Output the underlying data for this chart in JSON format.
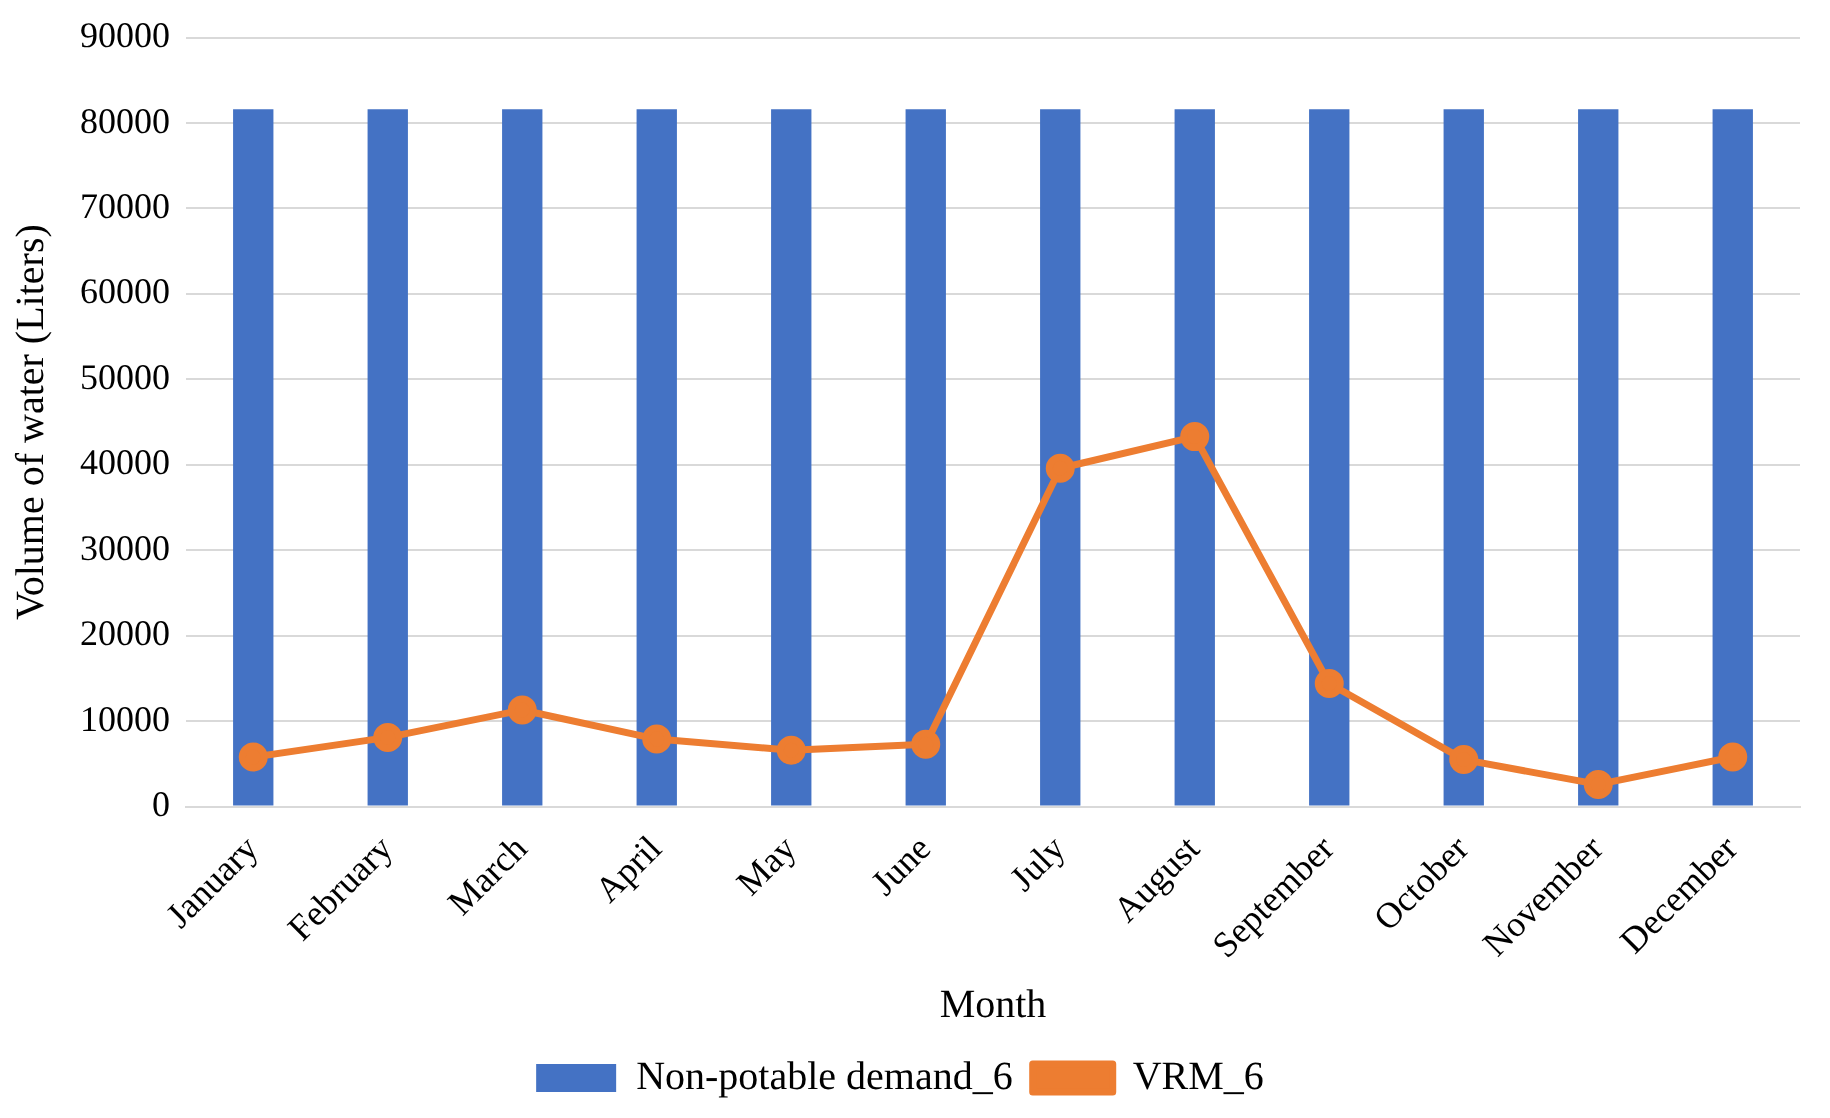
{
  "chart_data": {
    "type": "bar",
    "xlabel": "Month",
    "ylabel": "Volume of water (Liters)",
    "categories": [
      "January",
      "February",
      "March",
      "April",
      "May",
      "June",
      "July",
      "August",
      "September",
      "October",
      "November",
      "December"
    ],
    "series": [
      {
        "name": "Non-potable demand_6",
        "color": "#4472c4",
        "values": [
          81600,
          81600,
          81600,
          81600,
          81600,
          81600,
          81600,
          81600,
          81600,
          81600,
          81600,
          81600
        ]
      },
      {
        "name": "VRM_6",
        "type": "line",
        "color": "#ed7d31",
        "values": [
          5800,
          8100,
          11300,
          7900,
          6600,
          7300,
          39600,
          43300,
          14400,
          5500,
          2600,
          5800
        ]
      }
    ],
    "ylim": [
      0,
      90000
    ],
    "yticks": [
      0,
      10000,
      20000,
      30000,
      40000,
      50000,
      60000,
      70000,
      80000,
      90000
    ],
    "grid": "y",
    "legend": "bottom",
    "marker": "circle"
  }
}
